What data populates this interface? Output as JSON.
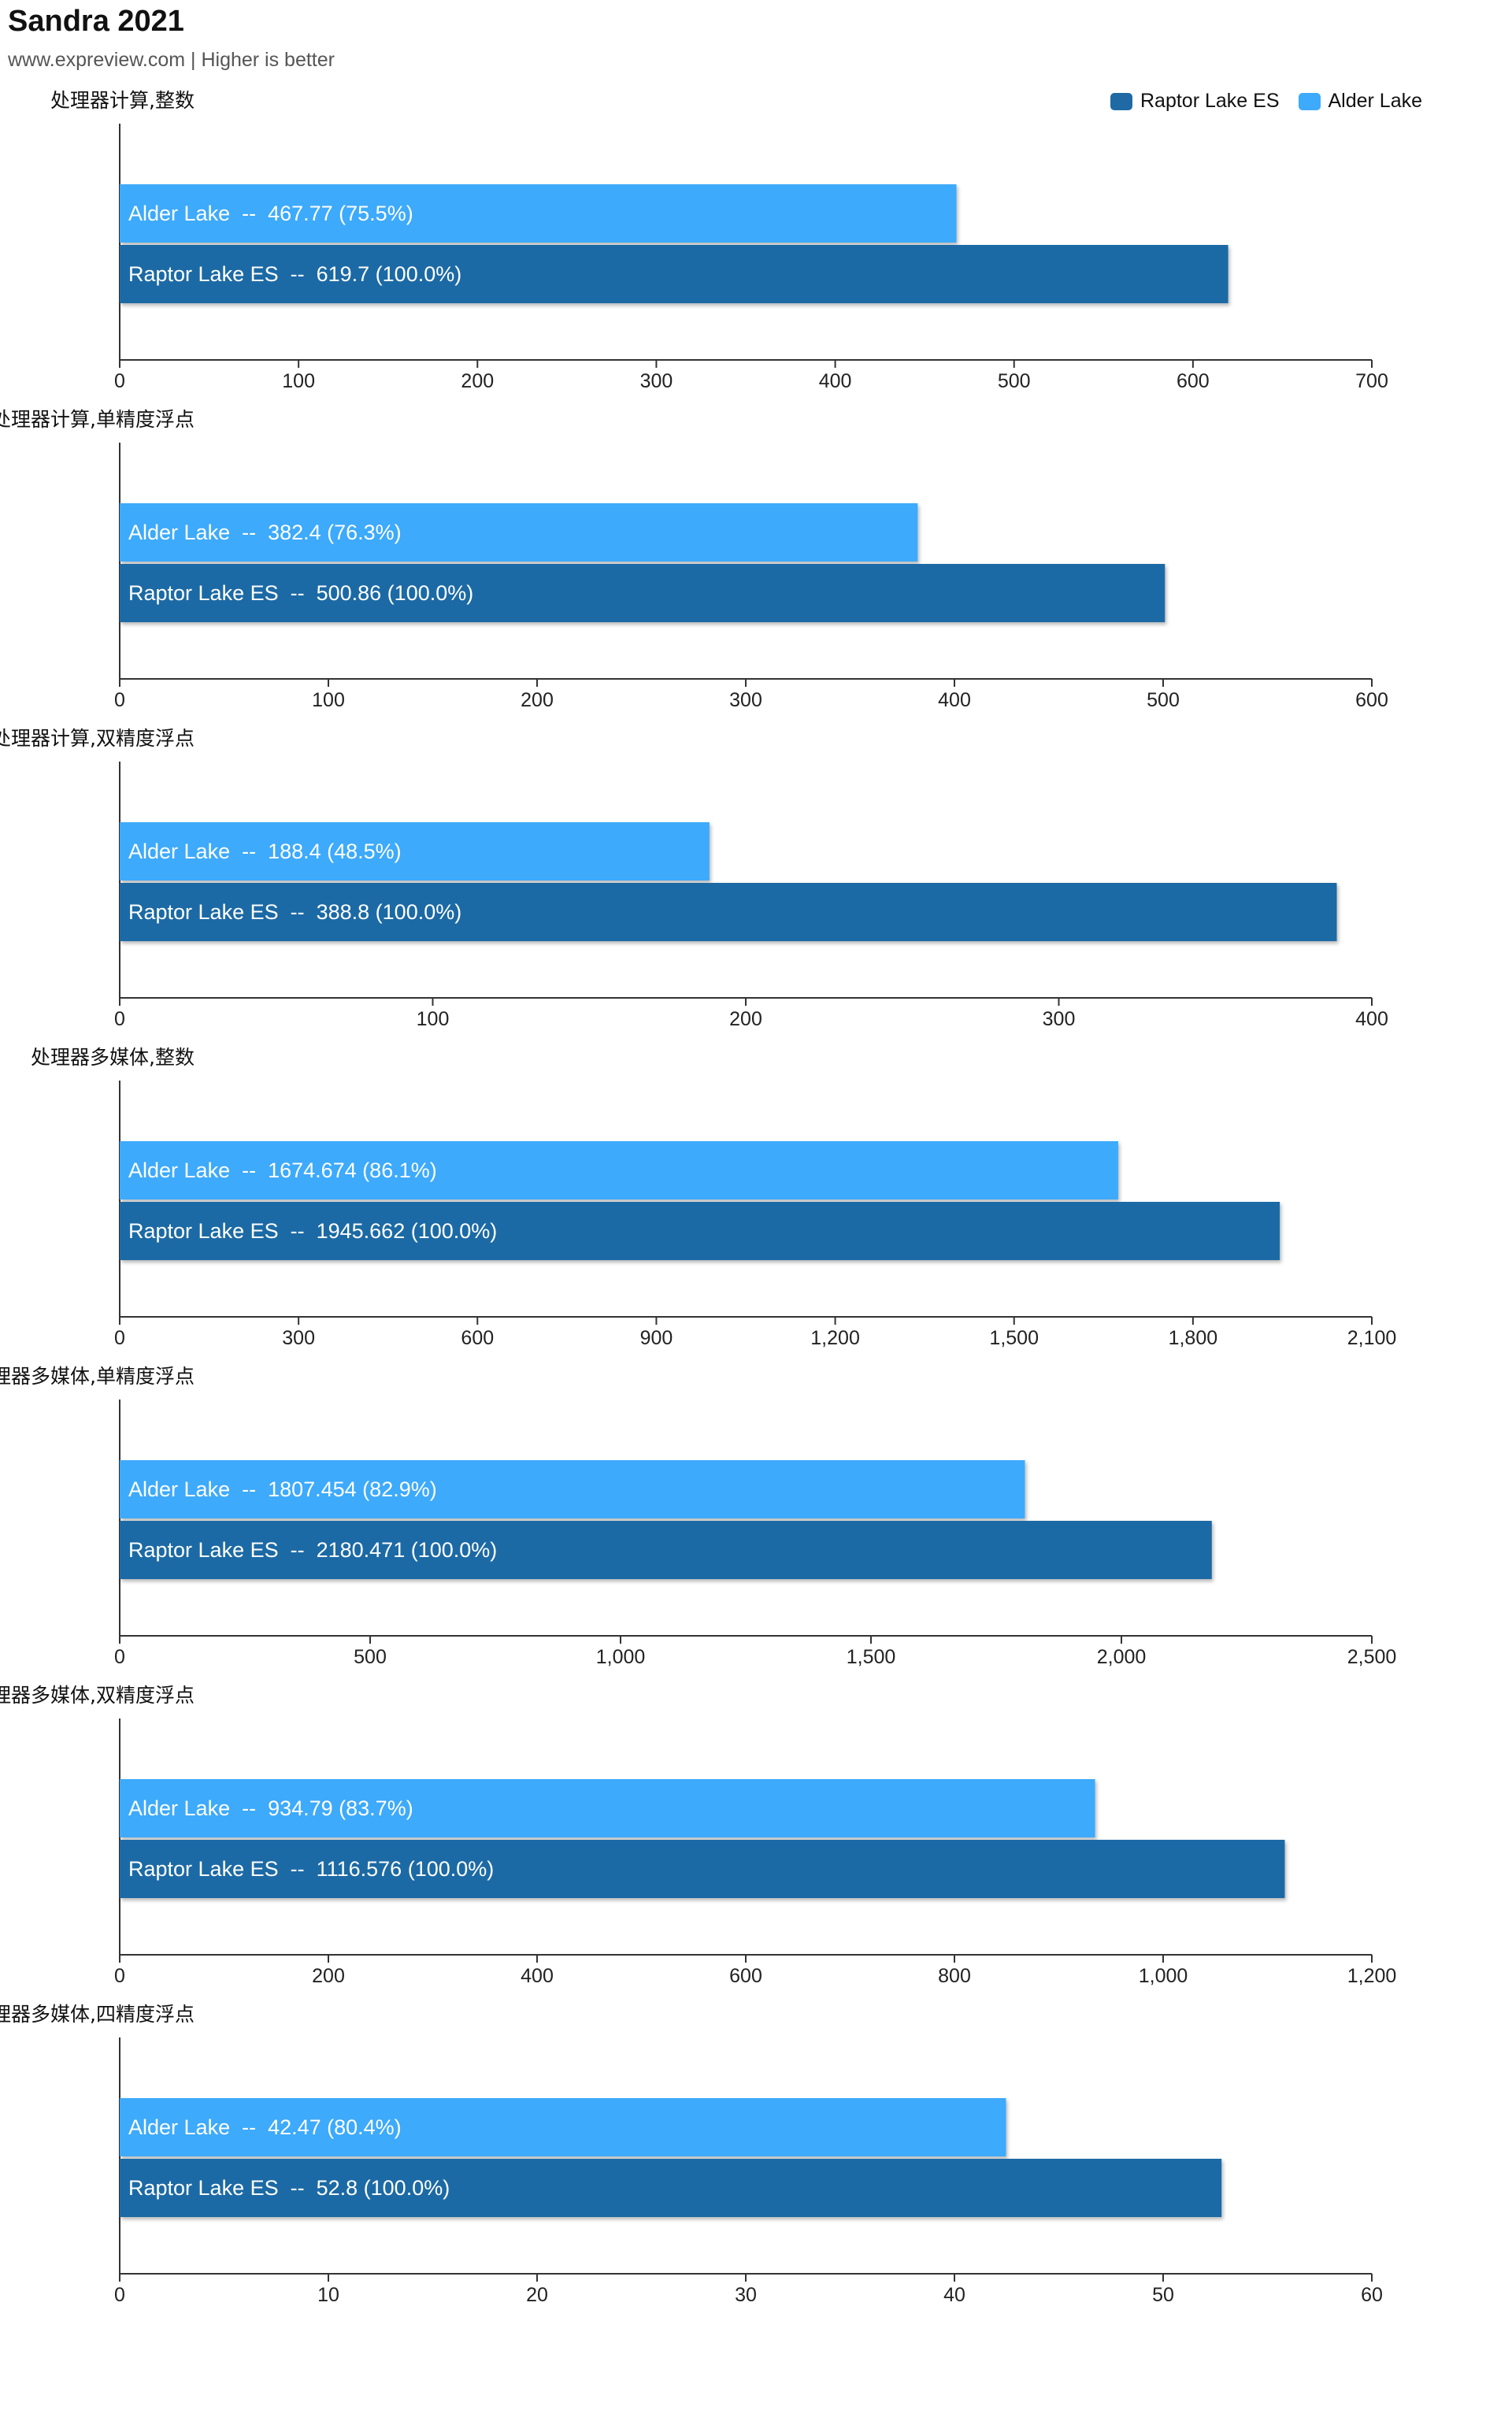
{
  "chart_data": {
    "type": "bar",
    "title": "Sandra 2021",
    "subtitle": "www.expreview.com | Higher is better",
    "legend": [
      {
        "name": "Raptor Lake ES",
        "color": "#1f6aa5"
      },
      {
        "name": "Alder Lake",
        "color": "#3daafc"
      }
    ],
    "legend_position": "top-right",
    "orientation": "horizontal",
    "panels": [
      {
        "title": "处理器计算,整数",
        "xlim": [
          0,
          700
        ],
        "ticks": [
          "0",
          "100",
          "200",
          "300",
          "400",
          "500",
          "600",
          "700"
        ],
        "series": [
          {
            "name": "Alder Lake",
            "value": 467.77,
            "label": "Alder Lake  --  467.77 (75.5%)"
          },
          {
            "name": "Raptor Lake ES",
            "value": 619.7,
            "label": "Raptor Lake ES  --  619.7 (100.0%)"
          }
        ]
      },
      {
        "title": "处理器计算,单精度浮点",
        "xlim": [
          0,
          600
        ],
        "ticks": [
          "0",
          "100",
          "200",
          "300",
          "400",
          "500",
          "600"
        ],
        "series": [
          {
            "name": "Alder Lake",
            "value": 382.4,
            "label": "Alder Lake  --  382.4 (76.3%)"
          },
          {
            "name": "Raptor Lake ES",
            "value": 500.86,
            "label": "Raptor Lake ES  --  500.86 (100.0%)"
          }
        ]
      },
      {
        "title": "处理器计算,双精度浮点",
        "xlim": [
          0,
          400
        ],
        "ticks": [
          "0",
          "100",
          "200",
          "300",
          "400"
        ],
        "series": [
          {
            "name": "Alder Lake",
            "value": 188.4,
            "label": "Alder Lake  --  188.4 (48.5%)"
          },
          {
            "name": "Raptor Lake ES",
            "value": 388.8,
            "label": "Raptor Lake ES  --  388.8 (100.0%)"
          }
        ]
      },
      {
        "title": "处理器多媒体,整数",
        "xlim": [
          0,
          2100
        ],
        "ticks": [
          "0",
          "300",
          "600",
          "900",
          "1,200",
          "1,500",
          "1,800",
          "2,100"
        ],
        "series": [
          {
            "name": "Alder Lake",
            "value": 1674.674,
            "label": "Alder Lake  --  1674.674 (86.1%)"
          },
          {
            "name": "Raptor Lake ES",
            "value": 1945.662,
            "label": "Raptor Lake ES  --  1945.662 (100.0%)"
          }
        ]
      },
      {
        "title": "处理器多媒体,单精度浮点",
        "xlim": [
          0,
          2500
        ],
        "ticks": [
          "0",
          "500",
          "1,000",
          "1,500",
          "2,000",
          "2,500"
        ],
        "series": [
          {
            "name": "Alder Lake",
            "value": 1807.454,
            "label": "Alder Lake  --  1807.454 (82.9%)"
          },
          {
            "name": "Raptor Lake ES",
            "value": 2180.471,
            "label": "Raptor Lake ES  --  2180.471 (100.0%)"
          }
        ]
      },
      {
        "title": "处理器多媒体,双精度浮点",
        "xlim": [
          0,
          1200
        ],
        "ticks": [
          "0",
          "200",
          "400",
          "600",
          "800",
          "1,000",
          "1,200"
        ],
        "series": [
          {
            "name": "Alder Lake",
            "value": 934.79,
            "label": "Alder Lake  --  934.79 (83.7%)"
          },
          {
            "name": "Raptor Lake ES",
            "value": 1116.576,
            "label": "Raptor Lake ES  --  1116.576 (100.0%)"
          }
        ]
      },
      {
        "title": "处理器多媒体,四精度浮点",
        "xlim": [
          0,
          60
        ],
        "ticks": [
          "0",
          "10",
          "20",
          "30",
          "40",
          "50",
          "60"
        ],
        "series": [
          {
            "name": "Alder Lake",
            "value": 42.47,
            "label": "Alder Lake  --  42.47 (80.4%)"
          },
          {
            "name": "Raptor Lake ES",
            "value": 52.8,
            "label": "Raptor Lake ES  --  52.8 (100.0%)"
          }
        ]
      }
    ]
  }
}
